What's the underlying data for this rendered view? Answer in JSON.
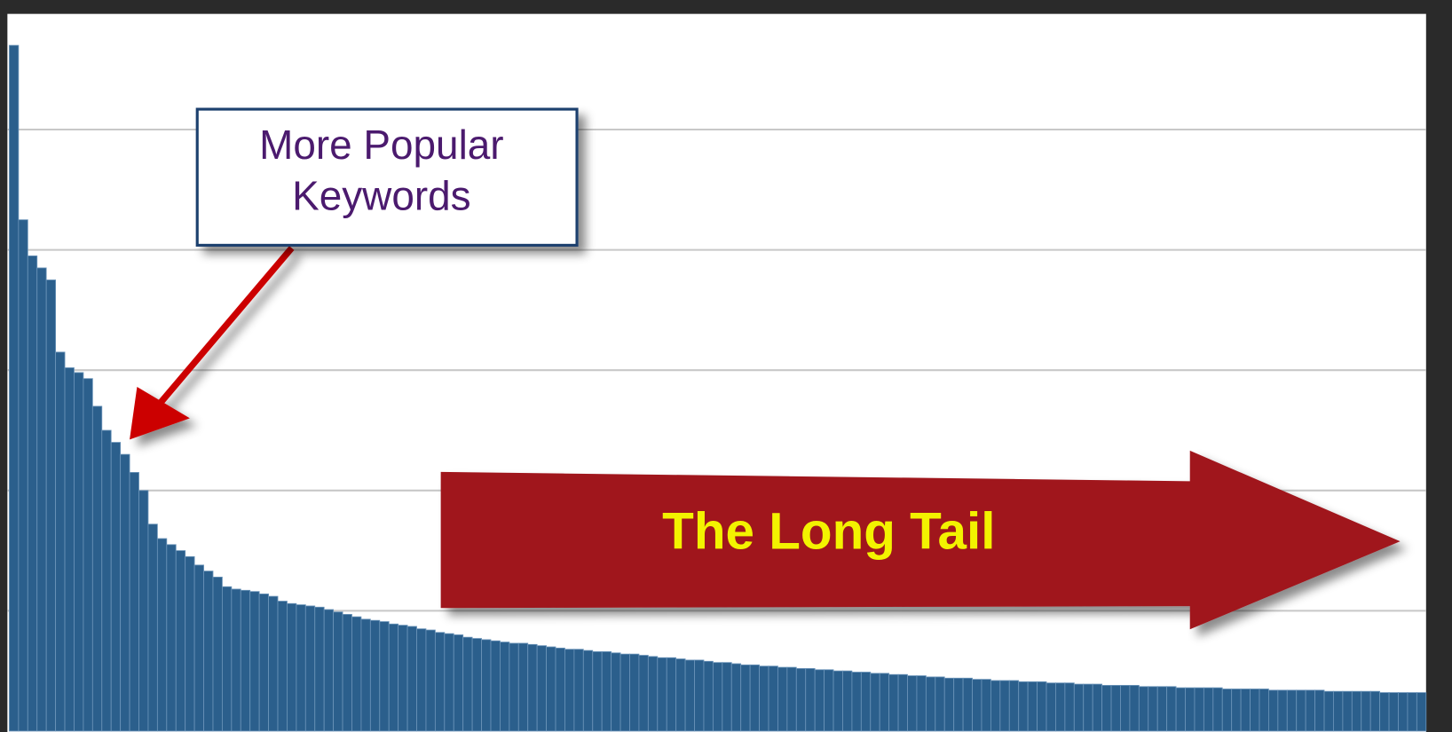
{
  "chart_data": {
    "type": "bar",
    "annotations": {
      "box_lines": [
        "More Popular",
        "Keywords"
      ],
      "tail_label": "The Long Tail"
    },
    "color": "#2b5f8c",
    "values": [
      5.7,
      4.25,
      3.95,
      3.85,
      3.75,
      3.15,
      3.02,
      2.98,
      2.93,
      2.7,
      2.5,
      2.4,
      2.3,
      2.15,
      2.0,
      1.72,
      1.6,
      1.55,
      1.5,
      1.45,
      1.38,
      1.33,
      1.28,
      1.2,
      1.18,
      1.17,
      1.16,
      1.14,
      1.12,
      1.08,
      1.06,
      1.05,
      1.04,
      1.03,
      1.01,
      0.99,
      0.97,
      0.95,
      0.93,
      0.92,
      0.91,
      0.89,
      0.88,
      0.87,
      0.85,
      0.84,
      0.82,
      0.81,
      0.8,
      0.78,
      0.77,
      0.76,
      0.75,
      0.74,
      0.73,
      0.73,
      0.72,
      0.71,
      0.7,
      0.69,
      0.68,
      0.68,
      0.67,
      0.66,
      0.66,
      0.65,
      0.64,
      0.64,
      0.63,
      0.62,
      0.61,
      0.61,
      0.6,
      0.59,
      0.59,
      0.58,
      0.57,
      0.57,
      0.56,
      0.55,
      0.55,
      0.54,
      0.54,
      0.53,
      0.53,
      0.52,
      0.52,
      0.51,
      0.51,
      0.5,
      0.5,
      0.49,
      0.49,
      0.48,
      0.48,
      0.47,
      0.47,
      0.46,
      0.46,
      0.45,
      0.45,
      0.44,
      0.44,
      0.44,
      0.43,
      0.43,
      0.42,
      0.42,
      0.42,
      0.41,
      0.41,
      0.41,
      0.4,
      0.4,
      0.4,
      0.39,
      0.39,
      0.39,
      0.38,
      0.38,
      0.38,
      0.38,
      0.37,
      0.37,
      0.37,
      0.37,
      0.36,
      0.36,
      0.36,
      0.36,
      0.36,
      0.35,
      0.35,
      0.35,
      0.35,
      0.35,
      0.34,
      0.34,
      0.34,
      0.34,
      0.34,
      0.34,
      0.33,
      0.33,
      0.33,
      0.33,
      0.33,
      0.33,
      0.32,
      0.32,
      0.32,
      0.32,
      0.32
    ],
    "ylim": [
      0,
      6
    ],
    "yticks": [
      1,
      2,
      3,
      4,
      5
    ],
    "grid": true
  }
}
